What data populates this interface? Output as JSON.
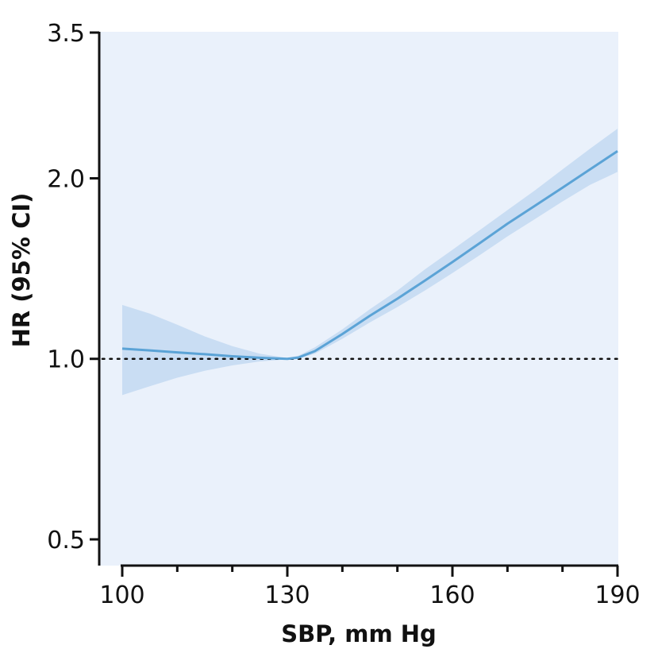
{
  "colors": {
    "background_panel": "#eaf1fb",
    "ci_band": "#c9ddf3",
    "line": "#5ba3d6",
    "axis": "#111111",
    "reference": "#111111"
  },
  "chart_data": {
    "type": "line",
    "xlabel": "SBP, mm Hg",
    "ylabel": "HR (95% CI)",
    "x_scale": "linear",
    "y_scale": "log",
    "xlim": [
      96,
      190
    ],
    "ylim": [
      0.5,
      3.5
    ],
    "x_ticks": [
      100,
      130,
      160,
      190
    ],
    "x_tick_labels": [
      "100",
      "130",
      "160",
      "190"
    ],
    "x_minor_ticks": [
      110,
      120,
      140,
      150,
      170,
      180
    ],
    "y_ticks": [
      0.5,
      1.0,
      2.0,
      3.5
    ],
    "y_tick_labels": [
      "0.5",
      "1.0",
      "2.0",
      "3.5"
    ],
    "reference_line": {
      "y": 1.0,
      "style": "dotted"
    },
    "grid": false,
    "series": [
      {
        "x": [
          100,
          105,
          110,
          115,
          120,
          125,
          130,
          132,
          135,
          140,
          145,
          150,
          155,
          160,
          165,
          170,
          175,
          180,
          185,
          190
        ],
        "y": [
          1.04,
          1.033,
          1.025,
          1.018,
          1.01,
          1.004,
          1.0,
          1.005,
          1.03,
          1.1,
          1.18,
          1.26,
          1.35,
          1.45,
          1.56,
          1.68,
          1.8,
          1.93,
          2.07,
          2.22
        ],
        "lower": [
          0.87,
          0.9,
          0.93,
          0.955,
          0.975,
          0.99,
          0.998,
          1.0,
          1.02,
          1.08,
          1.15,
          1.22,
          1.3,
          1.39,
          1.49,
          1.6,
          1.71,
          1.83,
          1.95,
          2.05
        ],
        "upper": [
          1.23,
          1.19,
          1.14,
          1.09,
          1.05,
          1.02,
          1.003,
          1.012,
          1.045,
          1.12,
          1.21,
          1.3,
          1.41,
          1.52,
          1.64,
          1.77,
          1.91,
          2.07,
          2.24,
          2.42
        ]
      }
    ]
  }
}
